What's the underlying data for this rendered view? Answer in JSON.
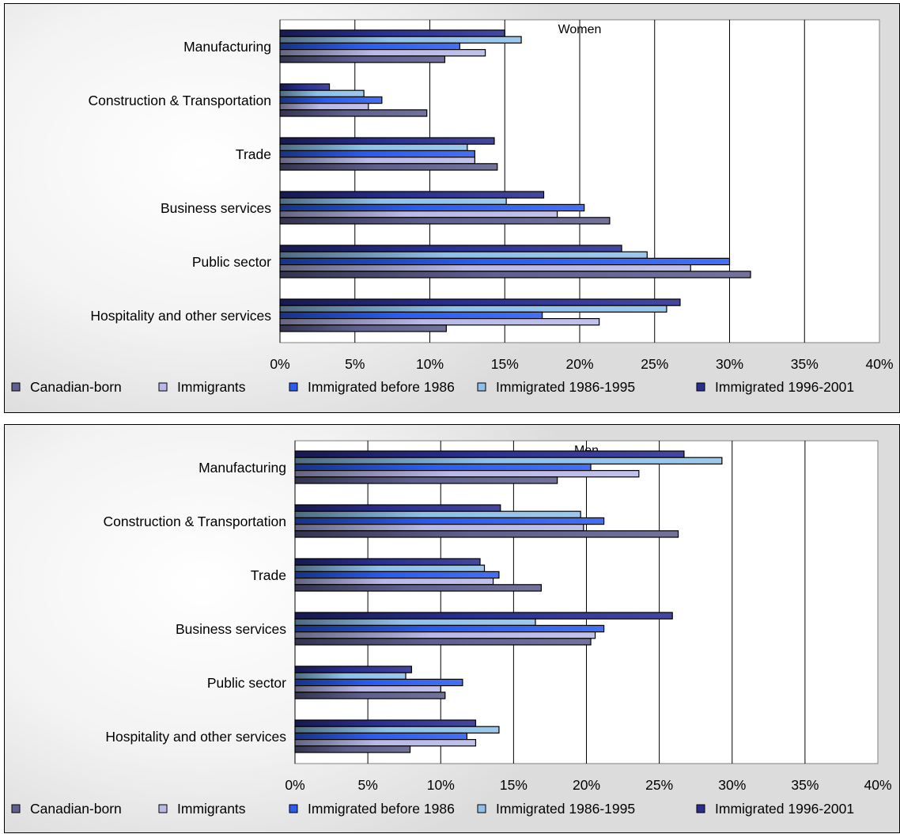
{
  "chart_data": [
    {
      "type": "bar",
      "orientation": "horizontal",
      "title": "Women",
      "categories": [
        "Manufacturing",
        "Construction & Transportation",
        "Trade",
        "Business services",
        "Public sector",
        "Hospitality and other services"
      ],
      "x_ticks": [
        "0%",
        "5%",
        "10%",
        "15%",
        "20%",
        "25%",
        "30%",
        "35%",
        "40%"
      ],
      "xlim": [
        0,
        40
      ],
      "grid": true,
      "legend_position": "bottom",
      "series": [
        {
          "name": "Canadian-born",
          "color": "#5f5f90",
          "values": [
            11.0,
            9.8,
            14.5,
            22.0,
            31.4,
            11.1
          ]
        },
        {
          "name": "Immigrants",
          "color": "#b8b8ea",
          "values": [
            13.7,
            5.9,
            13.0,
            18.5,
            27.4,
            21.3
          ]
        },
        {
          "name": "Immigrated before 1986",
          "color": "#2a5cf0",
          "values": [
            12.0,
            6.8,
            13.0,
            20.3,
            30.0,
            17.5
          ]
        },
        {
          "name": "Immigrated 1986-1995",
          "color": "#8ec0ea",
          "values": [
            16.1,
            5.6,
            12.5,
            15.1,
            24.5,
            25.8
          ]
        },
        {
          "name": "Immigrated 1996-2001",
          "color": "#2a2e90",
          "values": [
            15.0,
            3.3,
            14.3,
            17.6,
            22.8,
            26.7
          ]
        }
      ]
    },
    {
      "type": "bar",
      "orientation": "horizontal",
      "title": "Men",
      "categories": [
        "Manufacturing",
        "Construction & Transportation",
        "Trade",
        "Business services",
        "Public sector",
        "Hospitality and other services"
      ],
      "x_ticks": [
        "0%",
        "5%",
        "10%",
        "15%",
        "20%",
        "25%",
        "30%",
        "35%",
        "40%"
      ],
      "xlim": [
        0,
        40
      ],
      "grid": true,
      "legend_position": "bottom",
      "series": [
        {
          "name": "Canadian-born",
          "color": "#5f5f90",
          "values": [
            18.0,
            26.3,
            16.9,
            20.3,
            10.3,
            7.9
          ]
        },
        {
          "name": "Immigrants",
          "color": "#b8b8ea",
          "values": [
            23.6,
            19.8,
            13.6,
            20.6,
            10.0,
            12.4
          ]
        },
        {
          "name": "Immigrated before 1986",
          "color": "#2a5cf0",
          "values": [
            20.3,
            21.2,
            14.0,
            21.2,
            11.5,
            11.8
          ]
        },
        {
          "name": "Immigrated 1986-1995",
          "color": "#8ec0ea",
          "values": [
            29.3,
            19.6,
            13.0,
            16.5,
            7.6,
            14.0
          ]
        },
        {
          "name": "Immigrated 1996-2001",
          "color": "#2a2e90",
          "values": [
            26.7,
            14.1,
            12.7,
            25.9,
            8.0,
            12.4
          ]
        }
      ]
    }
  ]
}
